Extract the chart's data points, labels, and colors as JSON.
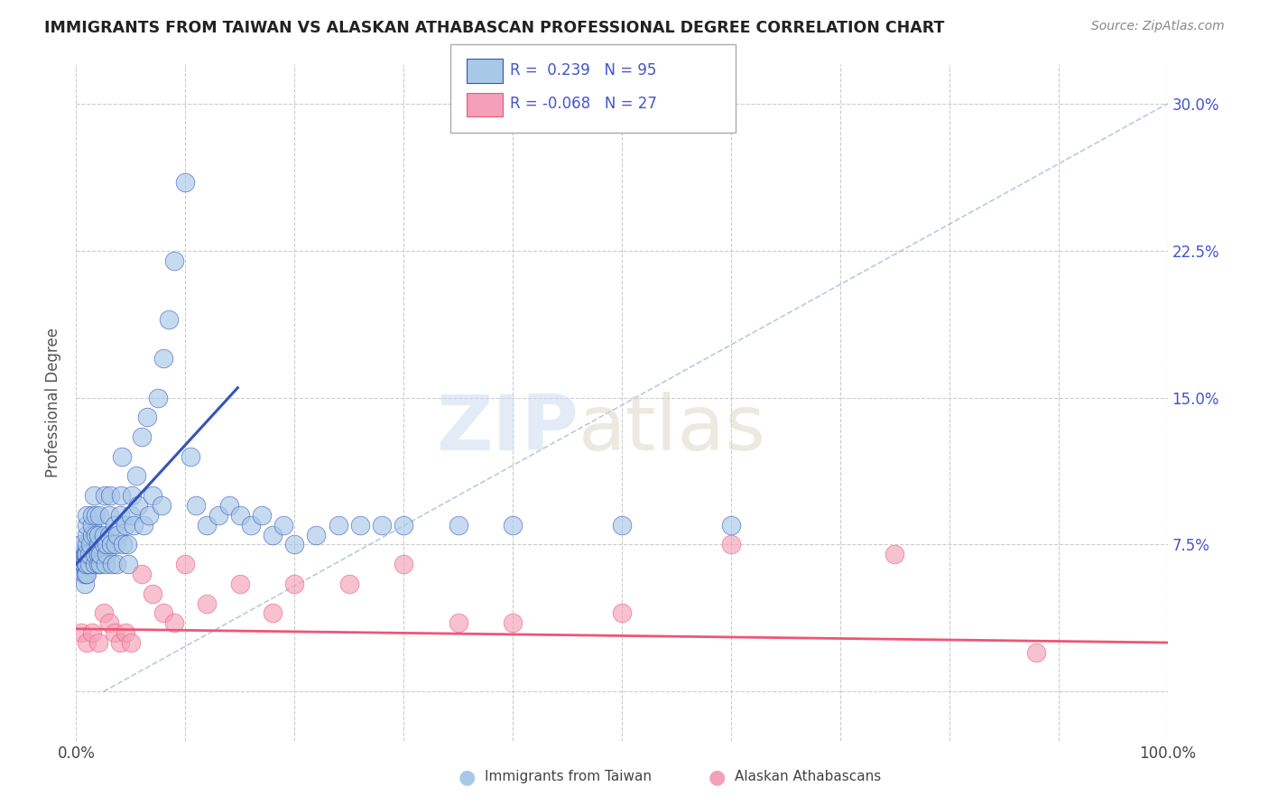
{
  "title": "IMMIGRANTS FROM TAIWAN VS ALASKAN ATHABASCAN PROFESSIONAL DEGREE CORRELATION CHART",
  "source": "Source: ZipAtlas.com",
  "ylabel": "Professional Degree",
  "xlim": [
    0.0,
    1.0
  ],
  "ylim": [
    -0.025,
    0.32
  ],
  "x_ticks": [
    0.0,
    0.1,
    0.2,
    0.3,
    0.4,
    0.5,
    0.6,
    0.7,
    0.8,
    0.9,
    1.0
  ],
  "x_tick_labels": [
    "0.0%",
    "",
    "",
    "",
    "",
    "",
    "",
    "",
    "",
    "",
    "100.0%"
  ],
  "y_ticks": [
    0.0,
    0.075,
    0.15,
    0.225,
    0.3
  ],
  "y_tick_labels_right": [
    "",
    "7.5%",
    "15.0%",
    "22.5%",
    "30.0%"
  ],
  "color_blue": "#a8c8e8",
  "color_pink": "#f4a0b8",
  "line_color_blue": "#3355bb",
  "line_color_pink": "#ee5577",
  "legend_text_color": "#4455cc",
  "background_color": "#ffffff",
  "grid_color": "#cccccc",
  "taiwan_x": [
    0.005,
    0.005,
    0.005,
    0.007,
    0.007,
    0.008,
    0.008,
    0.009,
    0.009,
    0.009,
    0.01,
    0.01,
    0.01,
    0.01,
    0.01,
    0.01,
    0.01,
    0.012,
    0.012,
    0.013,
    0.015,
    0.015,
    0.015,
    0.016,
    0.017,
    0.017,
    0.018,
    0.018,
    0.02,
    0.02,
    0.02,
    0.02,
    0.021,
    0.022,
    0.022,
    0.025,
    0.025,
    0.026,
    0.027,
    0.028,
    0.028,
    0.03,
    0.03,
    0.031,
    0.032,
    0.033,
    0.035,
    0.036,
    0.037,
    0.038,
    0.04,
    0.041,
    0.042,
    0.043,
    0.045,
    0.047,
    0.048,
    0.05,
    0.051,
    0.053,
    0.055,
    0.057,
    0.06,
    0.062,
    0.065,
    0.067,
    0.07,
    0.075,
    0.078,
    0.08,
    0.085,
    0.09,
    0.1,
    0.105,
    0.11,
    0.12,
    0.13,
    0.14,
    0.15,
    0.16,
    0.17,
    0.18,
    0.19,
    0.2,
    0.22,
    0.24,
    0.26,
    0.28,
    0.3,
    0.35,
    0.4,
    0.5,
    0.6
  ],
  "taiwan_y": [
    0.065,
    0.07,
    0.075,
    0.06,
    0.065,
    0.055,
    0.07,
    0.06,
    0.065,
    0.07,
    0.06,
    0.065,
    0.07,
    0.075,
    0.08,
    0.085,
    0.09,
    0.065,
    0.07,
    0.075,
    0.08,
    0.085,
    0.09,
    0.1,
    0.065,
    0.07,
    0.08,
    0.09,
    0.065,
    0.07,
    0.075,
    0.08,
    0.09,
    0.065,
    0.07,
    0.075,
    0.08,
    0.1,
    0.065,
    0.07,
    0.075,
    0.08,
    0.09,
    0.1,
    0.075,
    0.065,
    0.085,
    0.075,
    0.065,
    0.08,
    0.09,
    0.1,
    0.12,
    0.075,
    0.085,
    0.075,
    0.065,
    0.09,
    0.1,
    0.085,
    0.11,
    0.095,
    0.13,
    0.085,
    0.14,
    0.09,
    0.1,
    0.15,
    0.095,
    0.17,
    0.19,
    0.22,
    0.26,
    0.12,
    0.095,
    0.085,
    0.09,
    0.095,
    0.09,
    0.085,
    0.09,
    0.08,
    0.085,
    0.075,
    0.08,
    0.085,
    0.085,
    0.085,
    0.085,
    0.085,
    0.085,
    0.085,
    0.085
  ],
  "alaska_x": [
    0.005,
    0.01,
    0.015,
    0.02,
    0.025,
    0.03,
    0.035,
    0.04,
    0.045,
    0.05,
    0.06,
    0.07,
    0.08,
    0.09,
    0.1,
    0.12,
    0.15,
    0.18,
    0.2,
    0.25,
    0.3,
    0.35,
    0.4,
    0.5,
    0.6,
    0.75,
    0.88
  ],
  "alaska_y": [
    0.03,
    0.025,
    0.03,
    0.025,
    0.04,
    0.035,
    0.03,
    0.025,
    0.03,
    0.025,
    0.06,
    0.05,
    0.04,
    0.035,
    0.065,
    0.045,
    0.055,
    0.04,
    0.055,
    0.055,
    0.065,
    0.035,
    0.035,
    0.04,
    0.075,
    0.07,
    0.02
  ],
  "blue_line_x": [
    0.0,
    0.148
  ],
  "blue_line_y": [
    0.065,
    0.155
  ],
  "pink_line_x": [
    0.0,
    1.0
  ],
  "pink_line_y": [
    0.032,
    0.025
  ],
  "diag_line_x": [
    0.025,
    1.0
  ],
  "diag_line_y": [
    0.0,
    0.3
  ]
}
